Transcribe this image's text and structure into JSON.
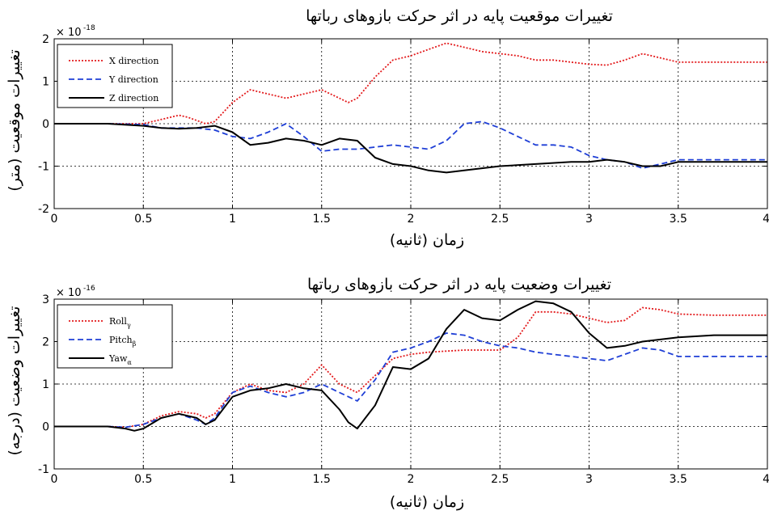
{
  "chart_data": [
    {
      "type": "line",
      "title": "تغییرات موقعیت پایه در اثر حرکت بازوهای رباتها",
      "xlabel": "زمان (ثانیه)",
      "ylabel": "تغییرات موقعیت (متر)",
      "y_multiplier": "× 10",
      "y_exponent": "-18",
      "xlim": [
        0,
        4
      ],
      "ylim": [
        -2,
        2
      ],
      "x_ticks": [
        "0",
        "0.5",
        "1",
        "1.5",
        "2",
        "2.5",
        "3",
        "3.5",
        "4"
      ],
      "y_ticks": [
        "-2",
        "-1",
        "0",
        "1",
        "2"
      ],
      "grid": true,
      "legend_position": "top-left",
      "series": [
        {
          "name": "X direction",
          "color": "#e31a1c",
          "dash": "dotted",
          "points": [
            [
              0,
              0
            ],
            [
              0.3,
              0
            ],
            [
              0.5,
              0
            ],
            [
              0.6,
              0.1
            ],
            [
              0.7,
              0.2
            ],
            [
              0.75,
              0.15
            ],
            [
              0.85,
              0
            ],
            [
              0.9,
              0.05
            ],
            [
              1.0,
              0.5
            ],
            [
              1.1,
              0.8
            ],
            [
              1.2,
              0.7
            ],
            [
              1.3,
              0.6
            ],
            [
              1.4,
              0.7
            ],
            [
              1.5,
              0.8
            ],
            [
              1.6,
              0.6
            ],
            [
              1.65,
              0.5
            ],
            [
              1.7,
              0.6
            ],
            [
              1.8,
              1.1
            ],
            [
              1.9,
              1.5
            ],
            [
              2.0,
              1.6
            ],
            [
              2.1,
              1.75
            ],
            [
              2.2,
              1.9
            ],
            [
              2.3,
              1.8
            ],
            [
              2.4,
              1.7
            ],
            [
              2.5,
              1.65
            ],
            [
              2.6,
              1.6
            ],
            [
              2.7,
              1.5
            ],
            [
              2.8,
              1.5
            ],
            [
              2.9,
              1.45
            ],
            [
              3.0,
              1.4
            ],
            [
              3.1,
              1.38
            ],
            [
              3.2,
              1.5
            ],
            [
              3.3,
              1.65
            ],
            [
              3.4,
              1.55
            ],
            [
              3.5,
              1.45
            ],
            [
              3.7,
              1.45
            ],
            [
              4.0,
              1.45
            ]
          ]
        },
        {
          "name": "Y direction",
          "color": "#1f3fd6",
          "dash": "dashed",
          "points": [
            [
              0,
              0
            ],
            [
              0.3,
              0
            ],
            [
              0.5,
              -0.02
            ],
            [
              0.6,
              -0.1
            ],
            [
              0.7,
              -0.1
            ],
            [
              0.8,
              -0.1
            ],
            [
              0.9,
              -0.15
            ],
            [
              1.0,
              -0.3
            ],
            [
              1.1,
              -0.35
            ],
            [
              1.2,
              -0.2
            ],
            [
              1.3,
              0
            ],
            [
              1.4,
              -0.3
            ],
            [
              1.5,
              -0.65
            ],
            [
              1.6,
              -0.6
            ],
            [
              1.7,
              -0.6
            ],
            [
              1.8,
              -0.55
            ],
            [
              1.9,
              -0.5
            ],
            [
              2.0,
              -0.55
            ],
            [
              2.1,
              -0.6
            ],
            [
              2.2,
              -0.4
            ],
            [
              2.3,
              0
            ],
            [
              2.4,
              0.05
            ],
            [
              2.5,
              -0.1
            ],
            [
              2.6,
              -0.3
            ],
            [
              2.7,
              -0.5
            ],
            [
              2.8,
              -0.5
            ],
            [
              2.9,
              -0.55
            ],
            [
              3.0,
              -0.75
            ],
            [
              3.1,
              -0.85
            ],
            [
              3.2,
              -0.9
            ],
            [
              3.3,
              -1.05
            ],
            [
              3.4,
              -0.95
            ],
            [
              3.5,
              -0.85
            ],
            [
              3.7,
              -0.85
            ],
            [
              4.0,
              -0.85
            ]
          ]
        },
        {
          "name": "Z direction",
          "color": "#000000",
          "dash": "solid",
          "points": [
            [
              0,
              0
            ],
            [
              0.3,
              0
            ],
            [
              0.5,
              -0.05
            ],
            [
              0.6,
              -0.1
            ],
            [
              0.7,
              -0.12
            ],
            [
              0.8,
              -0.1
            ],
            [
              0.9,
              -0.05
            ],
            [
              1.0,
              -0.2
            ],
            [
              1.1,
              -0.5
            ],
            [
              1.2,
              -0.45
            ],
            [
              1.3,
              -0.35
            ],
            [
              1.4,
              -0.4
            ],
            [
              1.5,
              -0.5
            ],
            [
              1.6,
              -0.35
            ],
            [
              1.7,
              -0.4
            ],
            [
              1.8,
              -0.8
            ],
            [
              1.9,
              -0.95
            ],
            [
              2.0,
              -1.0
            ],
            [
              2.1,
              -1.1
            ],
            [
              2.2,
              -1.15
            ],
            [
              2.3,
              -1.1
            ],
            [
              2.5,
              -1.0
            ],
            [
              2.7,
              -0.95
            ],
            [
              2.9,
              -0.9
            ],
            [
              3.0,
              -0.9
            ],
            [
              3.1,
              -0.85
            ],
            [
              3.2,
              -0.9
            ],
            [
              3.3,
              -1.0
            ],
            [
              3.4,
              -1.0
            ],
            [
              3.5,
              -0.9
            ],
            [
              3.7,
              -0.9
            ],
            [
              4.0,
              -0.9
            ]
          ]
        }
      ]
    },
    {
      "type": "line",
      "title": "تغییرات وضعیت پایه در اثر حرکت بازوهای رباتها",
      "xlabel": "زمان (ثانیه)",
      "ylabel": "تغییرات وضعیت (درجه)",
      "y_multiplier": "× 10",
      "y_exponent": "-16",
      "xlim": [
        0,
        4
      ],
      "ylim": [
        -1,
        3
      ],
      "x_ticks": [
        "0",
        "0.5",
        "1",
        "1.5",
        "2",
        "2.5",
        "3",
        "3.5",
        "4"
      ],
      "y_ticks": [
        "-1",
        "0",
        "1",
        "2",
        "3"
      ],
      "grid": true,
      "legend_position": "top-left",
      "series": [
        {
          "name": "Roll",
          "subscript": "γ",
          "color": "#e31a1c",
          "dash": "dotted",
          "points": [
            [
              0,
              0
            ],
            [
              0.3,
              0
            ],
            [
              0.4,
              -0.02
            ],
            [
              0.5,
              0.05
            ],
            [
              0.6,
              0.25
            ],
            [
              0.7,
              0.35
            ],
            [
              0.8,
              0.3
            ],
            [
              0.85,
              0.2
            ],
            [
              0.9,
              0.3
            ],
            [
              1.0,
              0.8
            ],
            [
              1.1,
              1.0
            ],
            [
              1.2,
              0.85
            ],
            [
              1.3,
              0.8
            ],
            [
              1.4,
              1.0
            ],
            [
              1.5,
              1.45
            ],
            [
              1.6,
              1.0
            ],
            [
              1.7,
              0.8
            ],
            [
              1.8,
              1.2
            ],
            [
              1.9,
              1.6
            ],
            [
              2.0,
              1.7
            ],
            [
              2.1,
              1.75
            ],
            [
              2.3,
              1.8
            ],
            [
              2.5,
              1.8
            ],
            [
              2.6,
              2.1
            ],
            [
              2.7,
              2.7
            ],
            [
              2.8,
              2.7
            ],
            [
              2.9,
              2.65
            ],
            [
              3.0,
              2.55
            ],
            [
              3.1,
              2.45
            ],
            [
              3.2,
              2.5
            ],
            [
              3.3,
              2.8
            ],
            [
              3.4,
              2.75
            ],
            [
              3.5,
              2.65
            ],
            [
              3.7,
              2.62
            ],
            [
              4.0,
              2.62
            ]
          ]
        },
        {
          "name": "Pitch",
          "subscript": "β",
          "color": "#1f3fd6",
          "dash": "dashed",
          "points": [
            [
              0,
              0
            ],
            [
              0.3,
              0
            ],
            [
              0.4,
              -0.02
            ],
            [
              0.5,
              0.05
            ],
            [
              0.6,
              0.2
            ],
            [
              0.7,
              0.3
            ],
            [
              0.8,
              0.15
            ],
            [
              0.85,
              0.05
            ],
            [
              0.9,
              0.2
            ],
            [
              1.0,
              0.8
            ],
            [
              1.1,
              0.95
            ],
            [
              1.2,
              0.8
            ],
            [
              1.3,
              0.7
            ],
            [
              1.4,
              0.8
            ],
            [
              1.5,
              1.0
            ],
            [
              1.6,
              0.8
            ],
            [
              1.7,
              0.6
            ],
            [
              1.8,
              1.1
            ],
            [
              1.9,
              1.75
            ],
            [
              2.0,
              1.85
            ],
            [
              2.1,
              2.0
            ],
            [
              2.2,
              2.2
            ],
            [
              2.3,
              2.15
            ],
            [
              2.4,
              2.0
            ],
            [
              2.5,
              1.9
            ],
            [
              2.6,
              1.85
            ],
            [
              2.7,
              1.75
            ],
            [
              2.8,
              1.7
            ],
            [
              2.9,
              1.65
            ],
            [
              3.0,
              1.6
            ],
            [
              3.1,
              1.55
            ],
            [
              3.2,
              1.7
            ],
            [
              3.3,
              1.85
            ],
            [
              3.4,
              1.8
            ],
            [
              3.5,
              1.65
            ],
            [
              3.7,
              1.65
            ],
            [
              4.0,
              1.65
            ]
          ]
        },
        {
          "name": "Yaw",
          "subscript": "α",
          "color": "#000000",
          "dash": "solid",
          "points": [
            [
              0,
              0
            ],
            [
              0.3,
              0
            ],
            [
              0.4,
              -0.05
            ],
            [
              0.45,
              -0.1
            ],
            [
              0.5,
              -0.05
            ],
            [
              0.6,
              0.2
            ],
            [
              0.7,
              0.3
            ],
            [
              0.8,
              0.2
            ],
            [
              0.85,
              0.05
            ],
            [
              0.9,
              0.15
            ],
            [
              1.0,
              0.7
            ],
            [
              1.1,
              0.85
            ],
            [
              1.2,
              0.9
            ],
            [
              1.3,
              1.0
            ],
            [
              1.4,
              0.9
            ],
            [
              1.5,
              0.85
            ],
            [
              1.6,
              0.4
            ],
            [
              1.65,
              0.1
            ],
            [
              1.7,
              -0.05
            ],
            [
              1.8,
              0.5
            ],
            [
              1.9,
              1.4
            ],
            [
              2.0,
              1.35
            ],
            [
              2.1,
              1.6
            ],
            [
              2.2,
              2.3
            ],
            [
              2.3,
              2.75
            ],
            [
              2.4,
              2.55
            ],
            [
              2.5,
              2.5
            ],
            [
              2.6,
              2.75
            ],
            [
              2.7,
              2.95
            ],
            [
              2.8,
              2.9
            ],
            [
              2.9,
              2.7
            ],
            [
              3.0,
              2.2
            ],
            [
              3.1,
              1.85
            ],
            [
              3.2,
              1.9
            ],
            [
              3.3,
              2.0
            ],
            [
              3.4,
              2.05
            ],
            [
              3.5,
              2.1
            ],
            [
              3.7,
              2.15
            ],
            [
              4.0,
              2.15
            ]
          ]
        }
      ]
    }
  ]
}
